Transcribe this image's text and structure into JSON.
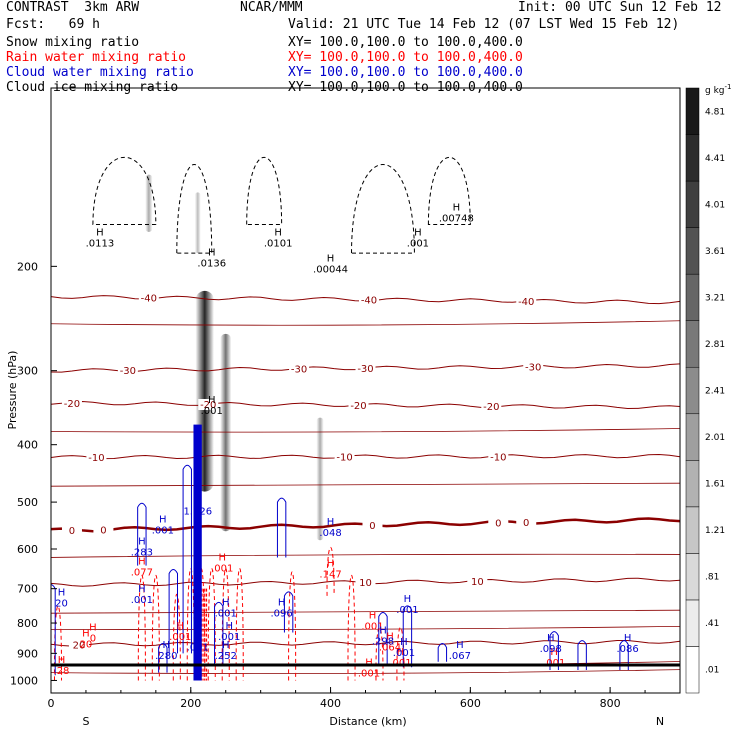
{
  "header": {
    "model": "CONTRAST  3km ARW",
    "org": "NCAR/MMM",
    "init": "Init: 00 UTC Sun 12 Feb 12",
    "fcst": "Fcst:   69 h",
    "valid": "Valid: 21 UTC Tue 14 Feb 12 (07 LST Wed 15 Feb 12)"
  },
  "fields": [
    {
      "name": "Snow mixing ratio",
      "color": "#000000",
      "xy": ""
    },
    {
      "name": "Rain water mixing ratio",
      "color": "#ff0000",
      "xy": "XY= 100.0,100.0 to 100.0,400.0"
    },
    {
      "name": "Cloud water mixing ratio",
      "color": "#0000cc",
      "xy": "XY= 100.0,100.0 to 100.0,400.0"
    },
    {
      "name": "Cloud ice mixing ratio",
      "color": "#000000",
      "xy": "XY= 100.0,100.0 to 100.0,400.0"
    }
  ],
  "xy_snow": "XY= 100.0,100.0 to 100.0,400.0",
  "chart_data": {
    "type": "heatmap",
    "title": "",
    "xlabel": "Distance (km)",
    "ylabel": "Pressure (hPa)",
    "xlim": [
      0,
      900
    ],
    "ylim": [
      1050,
      100
    ],
    "yscale": "log",
    "x_ticks": [
      0,
      200,
      400,
      600,
      800
    ],
    "y_ticks": [
      200,
      300,
      400,
      500,
      600,
      700,
      800,
      900,
      1000
    ],
    "x_end_labels": {
      "left": "S",
      "right": "N"
    },
    "colorbar": {
      "unit": "g kg",
      "unit_exp": "-1",
      "levels": [
        ".01",
        ".41",
        ".81",
        "1.21",
        "1.61",
        "2.01",
        "2.41",
        "2.81",
        "3.21",
        "3.61",
        "4.01",
        "4.41",
        "4.81"
      ]
    },
    "snow_shading": [
      {
        "x": 220,
        "p_top": 220,
        "p_bottom": 480,
        "max": 4.5
      },
      {
        "x": 250,
        "p_top": 260,
        "p_bottom": 560,
        "max": 2.2
      },
      {
        "x": 385,
        "p_top": 360,
        "p_bottom": 580,
        "max": 1.0
      },
      {
        "x": 140,
        "p_top": 140,
        "p_bottom": 175,
        "max": 1.0
      },
      {
        "x": 210,
        "p_top": 150,
        "p_bottom": 190,
        "max": 0.6
      }
    ],
    "temperature_contours": [
      {
        "label": "-40",
        "p_left": 225,
        "p_right": 230,
        "label_x": [
          140,
          455,
          680
        ]
      },
      {
        "label": "-30",
        "p_left": 300,
        "p_right": 294,
        "label_x": [
          110,
          355,
          450,
          690
        ]
      },
      {
        "label": "-20",
        "p_left": 340,
        "p_right": 346,
        "label_x": [
          30,
          225,
          440,
          630
        ]
      },
      {
        "label": "-10",
        "p_left": 420,
        "p_right": 418,
        "label_x": [
          65,
          420,
          640
        ]
      },
      {
        "label": "0",
        "p_left": 558,
        "p_right": 535,
        "label_x": [
          30,
          75,
          460,
          640,
          680
        ]
      },
      {
        "label": "10",
        "p_left": 690,
        "p_right": 675,
        "label_x": [
          450,
          610
        ]
      },
      {
        "label": "20",
        "p_left": 870,
        "p_right": 860,
        "label_x": [
          40
        ]
      }
    ],
    "annotations": {
      "snow_max": [
        {
          "label": ".0113",
          "x": 70,
          "p": 185
        },
        {
          "label": ".0136",
          "x": 230,
          "p": 200
        },
        {
          "label": ".0101",
          "x": 325,
          "p": 185
        },
        {
          "label": ".00044",
          "x": 400,
          "p": 205
        },
        {
          "label": ".001",
          "x": 525,
          "p": 185
        },
        {
          "label": ".00748",
          "x": 580,
          "p": 168
        },
        {
          "label": ".001",
          "x": 230,
          "p": 355
        }
      ],
      "rain_max": [
        {
          "label": ".077",
          "x": 130,
          "p": 665
        },
        {
          "label": ".147",
          "x": 400,
          "p": 670
        },
        {
          "label": ".001",
          "x": 245,
          "p": 655
        },
        {
          "label": ".001",
          "x": 460,
          "p": 820
        },
        {
          "label": "0",
          "x": 60,
          "p": 860
        },
        {
          "label": ".001",
          "x": 185,
          "p": 855
        },
        {
          "label": ".064",
          "x": 485,
          "p": 890
        },
        {
          "label": ".001",
          "x": 500,
          "p": 945
        },
        {
          "label": ".001",
          "x": 455,
          "p": 985
        },
        {
          "label": ".001",
          "x": 720,
          "p": 945
        },
        {
          "label": ".28",
          "x": 15,
          "p": 975
        },
        {
          "label": "20",
          "x": 50,
          "p": 880
        }
      ],
      "cloud_max": [
        {
          "label": ".001",
          "x": 160,
          "p": 565
        },
        {
          "label": "1.126",
          "x": 210,
          "p": 525
        },
        {
          "label": ".283",
          "x": 130,
          "p": 615
        },
        {
          "label": ".048",
          "x": 400,
          "p": 570
        },
        {
          "label": ".001",
          "x": 130,
          "p": 740
        },
        {
          "label": ".001",
          "x": 250,
          "p": 780
        },
        {
          "label": "20",
          "x": 15,
          "p": 750
        },
        {
          "label": ".096",
          "x": 330,
          "p": 780
        },
        {
          "label": ".001",
          "x": 510,
          "p": 770
        },
        {
          "label": ".298",
          "x": 475,
          "p": 870
        },
        {
          "label": ".001",
          "x": 255,
          "p": 855
        },
        {
          "label": ".001",
          "x": 210,
          "p": 890
        },
        {
          "label": ".280",
          "x": 165,
          "p": 920
        },
        {
          "label": ".252",
          "x": 250,
          "p": 920
        },
        {
          "label": ".001",
          "x": 505,
          "p": 910
        },
        {
          "label": ".067",
          "x": 585,
          "p": 920
        },
        {
          "label": ".098",
          "x": 715,
          "p": 895
        },
        {
          "label": ".086",
          "x": 825,
          "p": 895
        }
      ]
    }
  }
}
